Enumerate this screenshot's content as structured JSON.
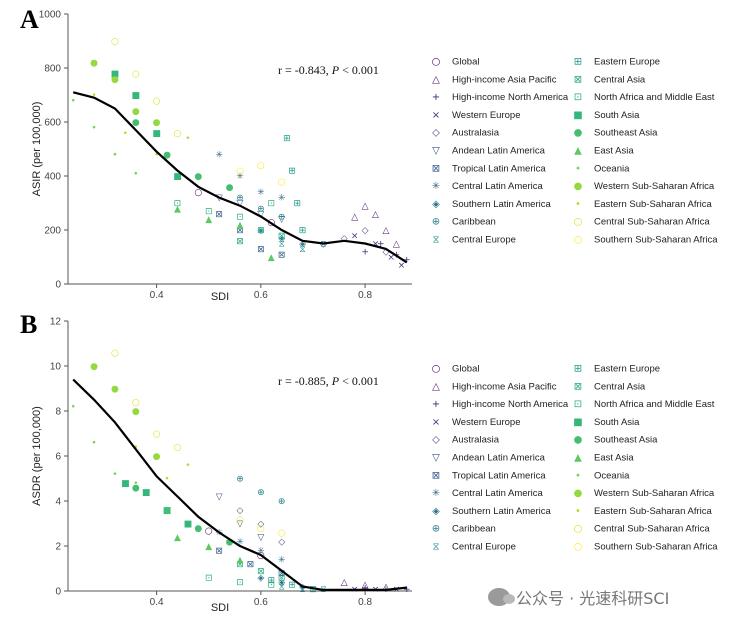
{
  "chart_data": [
    {
      "panel": "A",
      "type": "scatter",
      "xlabel": "SDI",
      "ylabel": "ASIR (per 100,000)",
      "xlim": [
        0.23,
        0.89
      ],
      "ylim": [
        0,
        1000
      ],
      "xticks": [
        0.4,
        0.6,
        0.8
      ],
      "yticks": [
        0,
        200,
        400,
        600,
        800,
        1000
      ],
      "annotation": {
        "r": "r = -0.843, ",
        "p": "P",
        "p_rest": " < 0.001"
      },
      "trend": {
        "x": [
          0.24,
          0.28,
          0.32,
          0.36,
          0.4,
          0.44,
          0.48,
          0.52,
          0.56,
          0.6,
          0.64,
          0.68,
          0.72,
          0.76,
          0.8,
          0.84,
          0.88
        ],
        "y": [
          710,
          690,
          650,
          570,
          490,
          420,
          360,
          320,
          290,
          250,
          200,
          160,
          150,
          160,
          150,
          130,
          80
        ]
      },
      "series_pts": [
        {
          "name": "Global",
          "x": [
            0.48,
            0.62
          ],
          "y": [
            340,
            230
          ]
        },
        {
          "name": "High-income Asia Pacific",
          "x": [
            0.78,
            0.8,
            0.82,
            0.84,
            0.86
          ],
          "y": [
            250,
            290,
            260,
            200,
            150
          ]
        },
        {
          "name": "High-income North America",
          "x": [
            0.8,
            0.83,
            0.86,
            0.88
          ],
          "y": [
            120,
            150,
            110,
            90
          ]
        },
        {
          "name": "Western Europe",
          "x": [
            0.78,
            0.82,
            0.85,
            0.87
          ],
          "y": [
            180,
            150,
            100,
            70
          ]
        },
        {
          "name": "Australasia",
          "x": [
            0.72,
            0.76,
            0.8,
            0.84
          ],
          "y": [
            150,
            170,
            200,
            120
          ]
        },
        {
          "name": "Andean Latin America",
          "x": [
            0.52,
            0.56,
            0.6,
            0.64
          ],
          "y": [
            320,
            300,
            260,
            240
          ]
        },
        {
          "name": "Tropical Latin America",
          "x": [
            0.52,
            0.56,
            0.6,
            0.64
          ],
          "y": [
            260,
            200,
            130,
            110
          ]
        },
        {
          "name": "Central Latin America",
          "x": [
            0.52,
            0.56,
            0.6,
            0.64
          ],
          "y": [
            480,
            400,
            340,
            320
          ]
        },
        {
          "name": "Southern Latin America",
          "x": [
            0.6,
            0.64,
            0.68
          ],
          "y": [
            200,
            170,
            150
          ]
        },
        {
          "name": "Caribbean",
          "x": [
            0.56,
            0.6,
            0.64
          ],
          "y": [
            320,
            280,
            250
          ]
        },
        {
          "name": "Central Europe",
          "x": [
            0.64,
            0.68,
            0.72
          ],
          "y": [
            150,
            130,
            150
          ]
        },
        {
          "name": "Eastern Europe",
          "x": [
            0.65,
            0.66,
            0.67,
            0.68
          ],
          "y": [
            540,
            420,
            300,
            200
          ]
        },
        {
          "name": "Central Asia",
          "x": [
            0.56,
            0.6,
            0.64
          ],
          "y": [
            160,
            200,
            180
          ]
        },
        {
          "name": "North Africa and Middle East",
          "x": [
            0.44,
            0.5,
            0.56,
            0.62
          ],
          "y": [
            300,
            270,
            250,
            300
          ]
        },
        {
          "name": "South Asia",
          "x": [
            0.32,
            0.36,
            0.4,
            0.44
          ],
          "y": [
            780,
            700,
            560,
            400
          ]
        },
        {
          "name": "Southeast Asia",
          "x": [
            0.36,
            0.42,
            0.48,
            0.54
          ],
          "y": [
            600,
            480,
            400,
            360
          ]
        },
        {
          "name": "East Asia",
          "x": [
            0.44,
            0.5,
            0.56,
            0.62
          ],
          "y": [
            280,
            240,
            220,
            100
          ]
        },
        {
          "name": "Oceania",
          "x": [
            0.24,
            0.28,
            0.32,
            0.36
          ],
          "y": [
            680,
            580,
            480,
            410
          ]
        },
        {
          "name": "Western Sub-Saharan Africa",
          "x": [
            0.28,
            0.32,
            0.36,
            0.4
          ],
          "y": [
            820,
            760,
            640,
            600
          ]
        },
        {
          "name": "Eastern Sub-Saharan Africa",
          "x": [
            0.28,
            0.34,
            0.4,
            0.46
          ],
          "y": [
            700,
            560,
            480,
            540
          ]
        },
        {
          "name": "Central Sub-Saharan Africa",
          "x": [
            0.32,
            0.36,
            0.4,
            0.44
          ],
          "y": [
            900,
            780,
            680,
            560
          ]
        },
        {
          "name": "Southern Sub-Saharan Africa",
          "x": [
            0.56,
            0.6,
            0.64
          ],
          "y": [
            420,
            440,
            380
          ]
        }
      ]
    },
    {
      "panel": "B",
      "type": "scatter",
      "xlabel": "SDI",
      "ylabel": "ASDR (per 100,000)",
      "xlim": [
        0.23,
        0.89
      ],
      "ylim": [
        0,
        12
      ],
      "xticks": [
        0.4,
        0.6,
        0.8
      ],
      "yticks": [
        0,
        2,
        4,
        6,
        8,
        10,
        12
      ],
      "annotation": {
        "r": "r = -0.885, ",
        "p": "P",
        "p_rest": " < 0.001"
      },
      "trend": {
        "x": [
          0.24,
          0.28,
          0.32,
          0.36,
          0.4,
          0.44,
          0.48,
          0.52,
          0.56,
          0.6,
          0.64,
          0.68,
          0.72,
          0.76,
          0.8,
          0.84,
          0.88
        ],
        "y": [
          9.4,
          8.5,
          7.5,
          6.3,
          5.1,
          4.2,
          3.3,
          2.6,
          2.0,
          1.6,
          0.9,
          0.2,
          0.05,
          0.05,
          0.05,
          0.05,
          0.15
        ]
      },
      "series_pts": [
        {
          "name": "Global",
          "x": [
            0.5,
            0.6
          ],
          "y": [
            2.7,
            1.6
          ]
        },
        {
          "name": "High-income Asia Pacific",
          "x": [
            0.76,
            0.8,
            0.84
          ],
          "y": [
            0.4,
            0.3,
            0.2
          ]
        },
        {
          "name": "High-income North America",
          "x": [
            0.8,
            0.84,
            0.88
          ],
          "y": [
            0.15,
            0.1,
            0.1
          ]
        },
        {
          "name": "Western Europe",
          "x": [
            0.78,
            0.82,
            0.86
          ],
          "y": [
            0.1,
            0.1,
            0.1
          ]
        },
        {
          "name": "Australasia",
          "x": [
            0.56,
            0.6,
            0.64
          ],
          "y": [
            3.6,
            3.0,
            2.2
          ]
        },
        {
          "name": "Andean Latin America",
          "x": [
            0.52,
            0.56,
            0.6
          ],
          "y": [
            4.2,
            3.0,
            2.4
          ]
        },
        {
          "name": "Tropical Latin America",
          "x": [
            0.52,
            0.58,
            0.64
          ],
          "y": [
            1.8,
            1.2,
            0.8
          ]
        },
        {
          "name": "Central Latin America",
          "x": [
            0.52,
            0.56,
            0.6,
            0.64
          ],
          "y": [
            2.6,
            2.2,
            1.8,
            1.4
          ]
        },
        {
          "name": "Southern Latin America",
          "x": [
            0.6,
            0.64,
            0.68
          ],
          "y": [
            0.6,
            0.4,
            0.2
          ]
        },
        {
          "name": "Caribbean",
          "x": [
            0.56,
            0.6,
            0.64
          ],
          "y": [
            5.0,
            4.4,
            4.0
          ]
        },
        {
          "name": "Central Europe",
          "x": [
            0.64,
            0.68,
            0.72
          ],
          "y": [
            0.2,
            0.1,
            0.1
          ]
        },
        {
          "name": "Eastern Europe",
          "x": [
            0.62,
            0.66,
            0.7
          ],
          "y": [
            0.5,
            0.3,
            0.1
          ]
        },
        {
          "name": "Central Asia",
          "x": [
            0.56,
            0.6,
            0.64
          ],
          "y": [
            1.2,
            0.9,
            0.6
          ]
        },
        {
          "name": "North Africa and Middle East",
          "x": [
            0.5,
            0.56,
            0.62
          ],
          "y": [
            0.6,
            0.4,
            0.3
          ]
        },
        {
          "name": "South Asia",
          "x": [
            0.34,
            0.38,
            0.42,
            0.46
          ],
          "y": [
            4.8,
            4.4,
            3.6,
            3.0
          ]
        },
        {
          "name": "Southeast Asia",
          "x": [
            0.36,
            0.42,
            0.48,
            0.54
          ],
          "y": [
            4.6,
            3.6,
            2.8,
            2.2
          ]
        },
        {
          "name": "East Asia",
          "x": [
            0.44,
            0.5,
            0.56
          ],
          "y": [
            2.4,
            2.0,
            1.4
          ]
        },
        {
          "name": "Oceania",
          "x": [
            0.24,
            0.28,
            0.32,
            0.36
          ],
          "y": [
            8.2,
            6.6,
            5.2,
            4.8
          ]
        },
        {
          "name": "Western Sub-Saharan Africa",
          "x": [
            0.28,
            0.32,
            0.36,
            0.4
          ],
          "y": [
            10.0,
            9.0,
            8.0,
            6.0
          ]
        },
        {
          "name": "Eastern Sub-Saharan Africa",
          "x": [
            0.3,
            0.36,
            0.42,
            0.46
          ],
          "y": [
            8.0,
            6.4,
            5.0,
            5.6
          ]
        },
        {
          "name": "Central Sub-Saharan Africa",
          "x": [
            0.32,
            0.36,
            0.4,
            0.44
          ],
          "y": [
            10.6,
            8.4,
            7.0,
            6.4
          ]
        },
        {
          "name": "Southern Sub-Saharan Africa",
          "x": [
            0.56,
            0.6,
            0.64
          ],
          "y": [
            3.2,
            2.8,
            2.6
          ]
        }
      ]
    }
  ],
  "legend": {
    "left": [
      {
        "label": "Global",
        "marker": "○",
        "color": "#440154"
      },
      {
        "label": "High-income Asia Pacific",
        "marker": "△",
        "color": "#471365"
      },
      {
        "label": "High-income North America",
        "marker": "+",
        "color": "#482374"
      },
      {
        "label": "Western Europe",
        "marker": "×",
        "color": "#46327e"
      },
      {
        "label": "Australasia",
        "marker": "◇",
        "color": "#423f85"
      },
      {
        "label": "Andean Latin America",
        "marker": "▽",
        "color": "#3c4f8a"
      },
      {
        "label": "Tropical Latin America",
        "marker": "⊠",
        "color": "#365c8d"
      },
      {
        "label": "Central Latin America",
        "marker": "✳",
        "color": "#31688e"
      },
      {
        "label": "Southern Latin America",
        "marker": "◈",
        "color": "#2c728e"
      },
      {
        "label": "Caribbean",
        "marker": "⊕",
        "color": "#277f8e"
      },
      {
        "label": "Central Europe",
        "marker": "⧖",
        "color": "#21918c"
      }
    ],
    "right": [
      {
        "label": "Eastern Europe",
        "marker": "⊞",
        "color": "#1f9a8a"
      },
      {
        "label": "Central Asia",
        "marker": "⊠",
        "color": "#22a884"
      },
      {
        "label": "North Africa and Middle East",
        "marker": "⊡",
        "color": "#2ab07f"
      },
      {
        "label": "South Asia",
        "marker": "■",
        "color": "#35b779"
      },
      {
        "label": "Southeast Asia",
        "marker": "●",
        "color": "#44bf70"
      },
      {
        "label": "East Asia",
        "marker": "▲",
        "color": "#5ec962"
      },
      {
        "label": "Oceania",
        "marker": "•",
        "color": "#7ad151"
      },
      {
        "label": "Western Sub-Saharan Africa",
        "marker": "●",
        "color": "#95d840"
      },
      {
        "label": "Eastern Sub-Saharan Africa",
        "marker": "•",
        "color": "#b5de2b"
      },
      {
        "label": "Central Sub-Saharan Africa",
        "marker": "○",
        "color": "#d8e219"
      },
      {
        "label": "Southern Sub-Saharan Africa",
        "marker": "○",
        "color": "#fde725"
      }
    ]
  },
  "watermark": "公众号 · 光速科研SCI",
  "colors": {
    "trend": "#000000",
    "axis": "#555555"
  }
}
